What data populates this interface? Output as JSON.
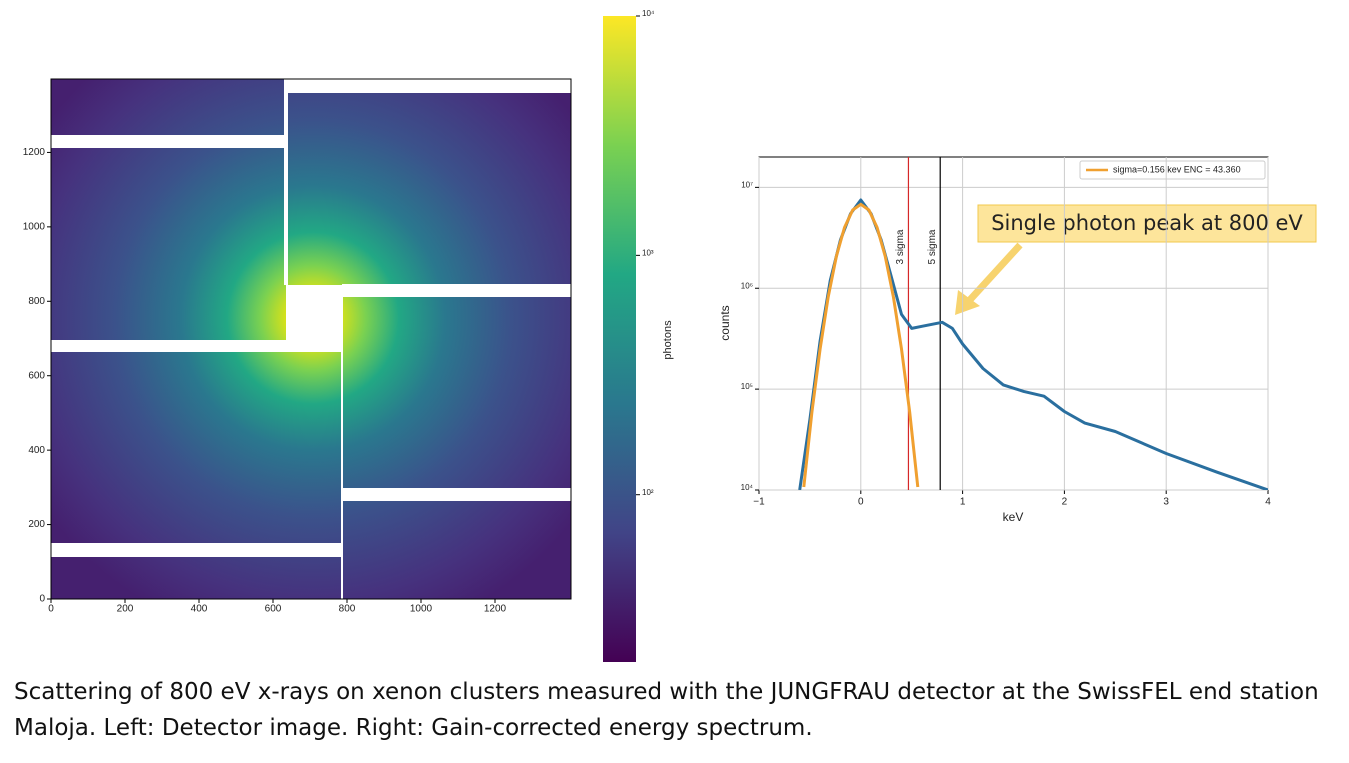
{
  "chart_data": [
    {
      "type": "image",
      "xlim": [
        0,
        1400
      ],
      "ylim": [
        0,
        1400
      ],
      "xticks": [
        0,
        200,
        400,
        600,
        800,
        1000,
        1200
      ],
      "yticks": [
        0,
        200,
        400,
        600,
        800,
        1000,
        1200
      ],
      "colorbar": {
        "label": "photons",
        "lim": [
          20,
          10000
        ],
        "scale": "log",
        "ticks": [
          {
            "value": 100,
            "label": "10²"
          },
          {
            "value": 1000,
            "label": "10³"
          },
          {
            "value": 10000,
            "label": "10⁴"
          }
        ]
      }
    },
    {
      "type": "line",
      "xlabel": "keV",
      "ylabel": "counts",
      "xlim": [
        -1,
        4
      ],
      "ylim": [
        10000,
        20000000
      ],
      "yscale": "log",
      "grid": true,
      "legend": "upper right",
      "xticks": [
        {
          "value": -1,
          "label": "−1"
        },
        0,
        1,
        2,
        3,
        4
      ],
      "yticks": [
        {
          "value": 10000,
          "label": "10⁴"
        },
        {
          "value": 100000,
          "label": "10⁵"
        },
        {
          "value": 1000000,
          "label": "10⁶"
        },
        {
          "value": 10000000,
          "label": "10⁷"
        }
      ],
      "series": [
        {
          "color": "#2a6f9f",
          "x": [
            -0.6,
            -0.5,
            -0.4,
            -0.3,
            -0.2,
            -0.1,
            0,
            0.1,
            0.2,
            0.3,
            0.4,
            0.5,
            0.6,
            0.8,
            0.9,
            1.0,
            1.2,
            1.4,
            1.6,
            1.8,
            2.0,
            2.2,
            2.5,
            3.0,
            3.5,
            4.0
          ],
          "values": [
            10000,
            50000,
            300000,
            1200000,
            3000000,
            5500000,
            7500000,
            5500000,
            3000000,
            1300000,
            550000,
            400000,
            420000,
            460000,
            400000,
            280000,
            160000,
            110000,
            95000,
            85000,
            60000,
            46000,
            38000,
            23000,
            15000,
            10000
          ]
        },
        {
          "name": "sigma=0.156 kev ENC = 43.360",
          "color": "#f0a030",
          "x": [
            -0.56,
            -0.48,
            -0.4,
            -0.32,
            -0.24,
            -0.16,
            -0.08,
            0,
            0.08,
            0.16,
            0.24,
            0.32,
            0.4,
            0.48,
            0.56
          ],
          "values": [
            10700,
            59000,
            250000,
            820000,
            2080000,
            4000000,
            5960000,
            6800000,
            5960000,
            4000000,
            2080000,
            820000,
            250000,
            59000,
            10700
          ]
        }
      ],
      "vlines": [
        {
          "x": 0.468,
          "color": "#d62728",
          "label": "3 sigma"
        },
        {
          "x": 0.78,
          "color": "#000000",
          "label": "5 sigma"
        }
      ],
      "annotation": "Single photon peak at 800 eV"
    }
  ],
  "caption": "Scattering of 800 eV x-rays on xenon clusters measured with the JUNGFRAU detector at the SwissFEL end station Maloja. Left: Detector image. Right: Gain-corrected energy spectrum."
}
